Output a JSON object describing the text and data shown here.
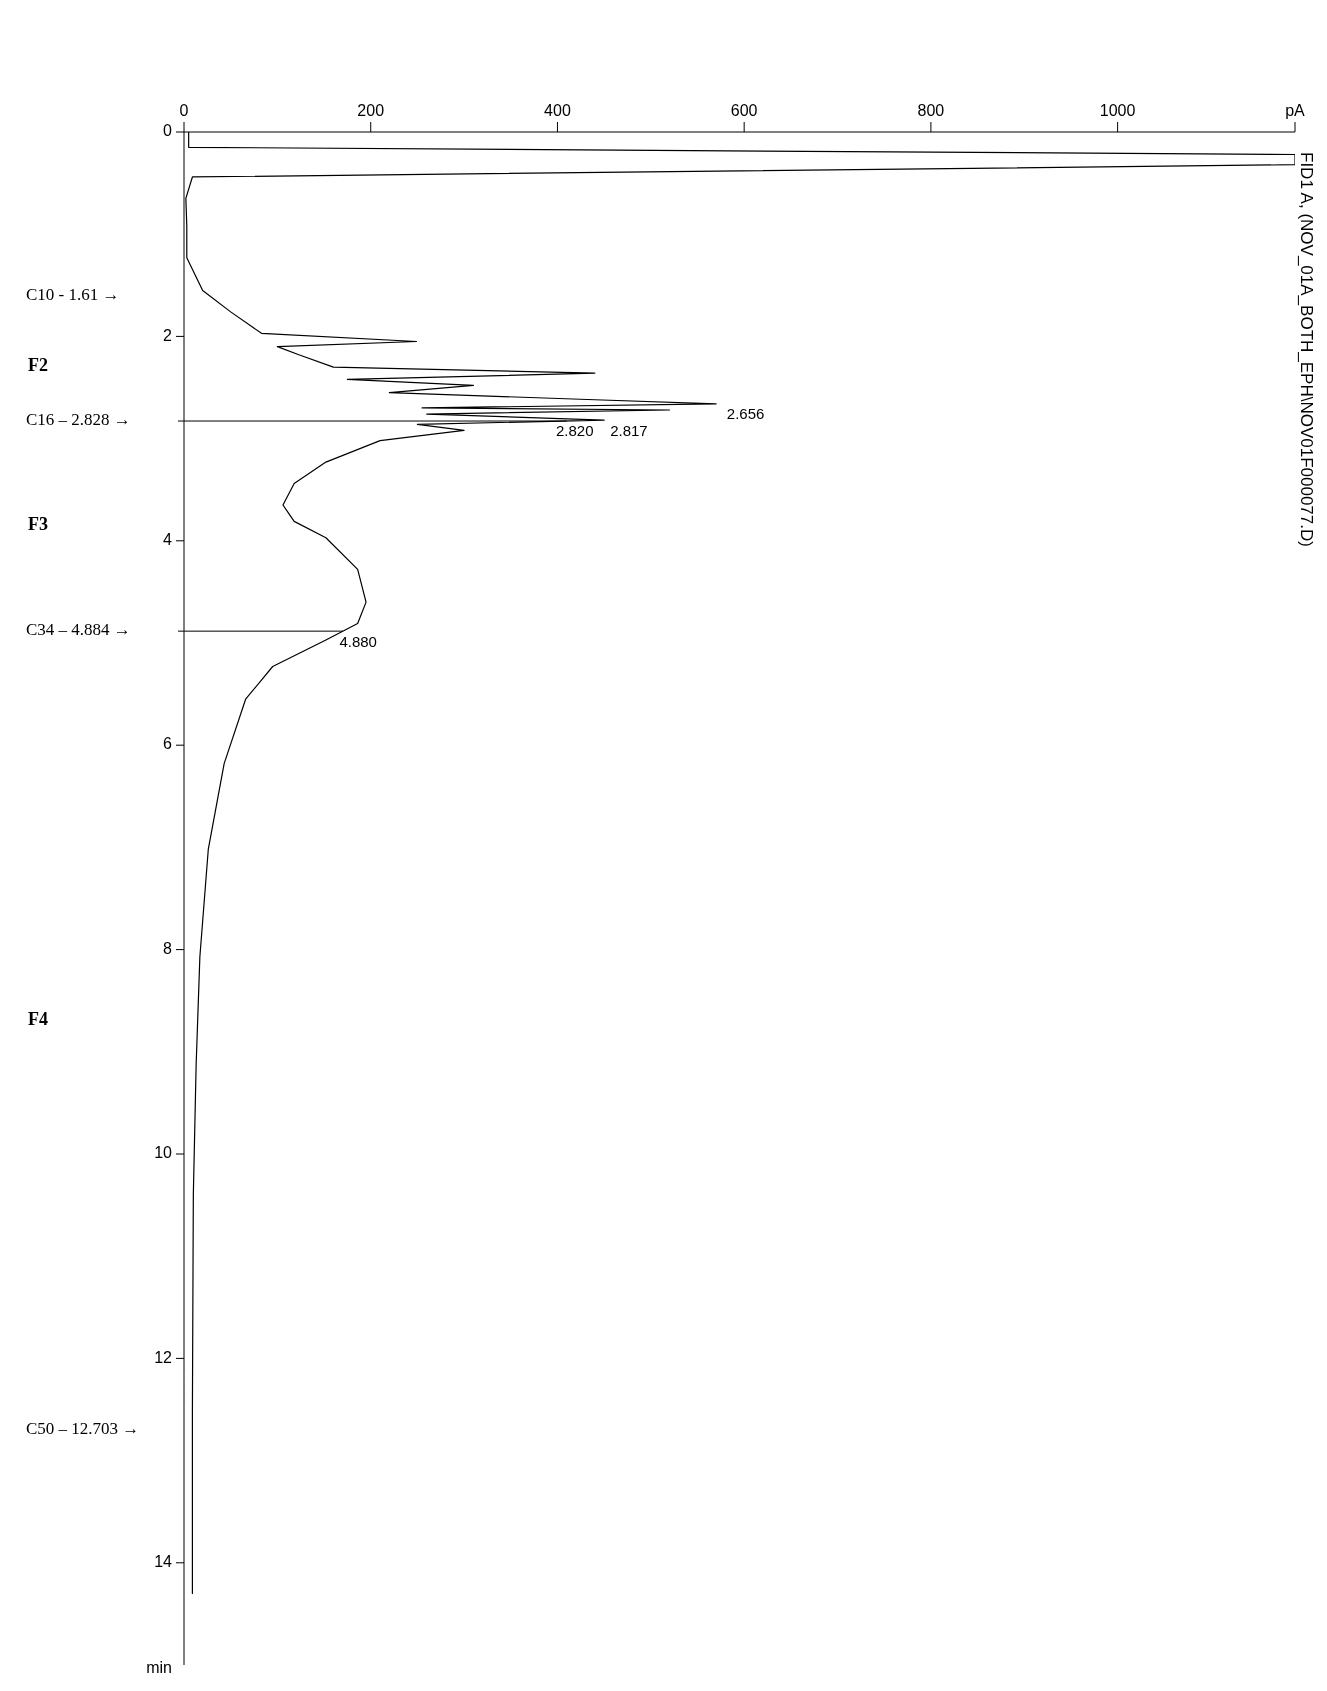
{
  "chart_data": {
    "type": "line",
    "title": "FID1 A, (NOV_01A_BOTH_EPH\\NOV01F000077.D)",
    "xlabel": "pA",
    "ylabel": "min",
    "xlim": [
      0,
      1190
    ],
    "xticks": [
      0,
      200,
      400,
      600,
      800,
      1000
    ],
    "ylim": [
      15,
      0
    ],
    "yticks": [
      0,
      2,
      4,
      6,
      8,
      10,
      12,
      14
    ],
    "series": [
      {
        "color": "#000000",
        "x": [
          5,
          5,
          1190,
          1190,
          9,
          2,
          3,
          3,
          20,
          50,
          83,
          249,
          100,
          123,
          160,
          440,
          175,
          310,
          220,
          440,
          570,
          255,
          520,
          260,
          450,
          250,
          300,
          210,
          152,
          118,
          106,
          118,
          152,
          186,
          195,
          186,
          152,
          95,
          66,
          43,
          26,
          17,
          13,
          10,
          9,
          9
        ],
        "values": [
          0,
          0.15,
          0.22,
          0.32,
          0.44,
          0.65,
          0.92,
          1.23,
          1.55,
          1.76,
          1.97,
          2.05,
          2.1,
          2.18,
          2.3,
          2.36,
          2.42,
          2.48,
          2.55,
          2.62,
          2.66,
          2.7,
          2.72,
          2.76,
          2.82,
          2.86,
          2.92,
          3.02,
          3.23,
          3.44,
          3.65,
          3.81,
          3.97,
          4.28,
          4.6,
          4.81,
          4.97,
          5.23,
          5.55,
          6.18,
          7.02,
          8.07,
          9.13,
          10.4,
          12.5,
          14.3
        ]
      }
    ],
    "ref_lines": [
      {
        "axis": "y",
        "value": 2.828,
        "label": "C16 – 2.828 →"
      },
      {
        "axis": "y",
        "value": 4.884,
        "label": "C34 – 4.884 →"
      }
    ],
    "annotations": [
      "C10 - 1.61 →",
      "F2",
      "F3",
      "F4",
      "C50 – 12.703 →",
      {
        "text": "2.656",
        "x": 575,
        "y": 2.656
      },
      {
        "text": "2.820",
        "x": 392,
        "y": 2.82
      },
      {
        "text": "2.817",
        "x": 450,
        "y": 2.82
      },
      {
        "text": "4.880",
        "x": 160,
        "y": 4.88
      }
    ]
  }
}
